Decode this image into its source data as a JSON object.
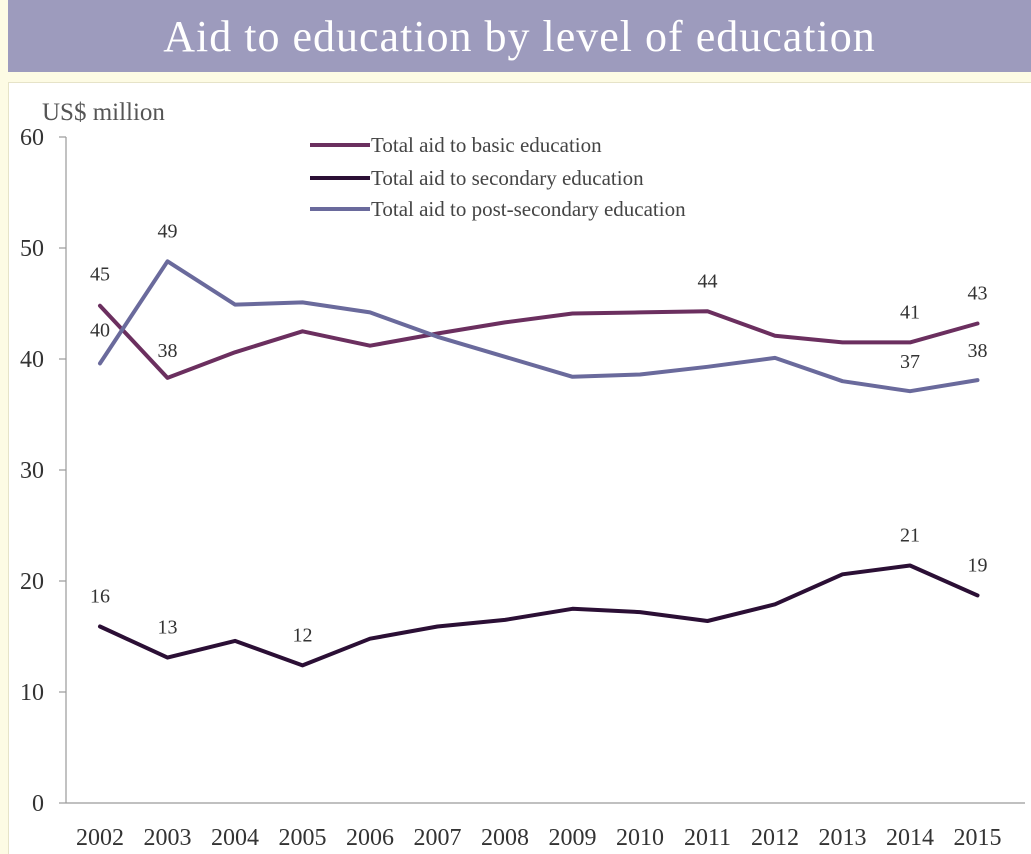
{
  "title": "Aid to education by level of education",
  "chart_data": {
    "type": "line",
    "ylabel": "US$ million",
    "ylim": [
      0,
      60
    ],
    "yticks": [
      "0",
      "10",
      "20",
      "30",
      "40",
      "50",
      "60"
    ],
    "y_tick_values": [
      0,
      10,
      20,
      30,
      40,
      50,
      60
    ],
    "categories": [
      "2002",
      "2003",
      "2004",
      "2005",
      "2006",
      "2007",
      "2008",
      "2009",
      "2010",
      "2011",
      "2012",
      "2013",
      "2014",
      "2015"
    ],
    "legend_position": "top-center",
    "series": [
      {
        "name": "Total aid to basic education",
        "color": "#6b2f5f",
        "values": [
          44.8,
          38.3,
          40.6,
          42.5,
          41.2,
          42.3,
          43.3,
          44.1,
          44.2,
          44.3,
          42.1,
          41.5,
          41.5,
          43.2
        ],
        "labels": [
          {
            "index": 0,
            "text": "45"
          },
          {
            "index": 1,
            "text": "38"
          },
          {
            "index": 9,
            "text": "44"
          },
          {
            "index": 12,
            "text": "41"
          },
          {
            "index": 13,
            "text": "43"
          }
        ]
      },
      {
        "name": "Total aid to secondary education",
        "color": "#2b0f35",
        "values": [
          15.9,
          13.1,
          14.6,
          12.4,
          14.8,
          15.9,
          16.5,
          17.5,
          17.2,
          16.4,
          17.9,
          20.6,
          21.4,
          18.7
        ],
        "labels": [
          {
            "index": 0,
            "text": "16"
          },
          {
            "index": 1,
            "text": "13"
          },
          {
            "index": 3,
            "text": "12"
          },
          {
            "index": 12,
            "text": "21"
          },
          {
            "index": 13,
            "text": "19"
          }
        ]
      },
      {
        "name": "Total aid to post-secondary education",
        "color": "#6a6a9c",
        "values": [
          39.6,
          48.8,
          44.9,
          45.1,
          44.2,
          42.0,
          40.2,
          38.4,
          38.6,
          39.3,
          40.1,
          38.0,
          37.1,
          38.1
        ],
        "labels": [
          {
            "index": 0,
            "text": "40"
          },
          {
            "index": 1,
            "text": "49"
          },
          {
            "index": 12,
            "text": "37"
          },
          {
            "index": 13,
            "text": "38"
          }
        ]
      }
    ]
  }
}
